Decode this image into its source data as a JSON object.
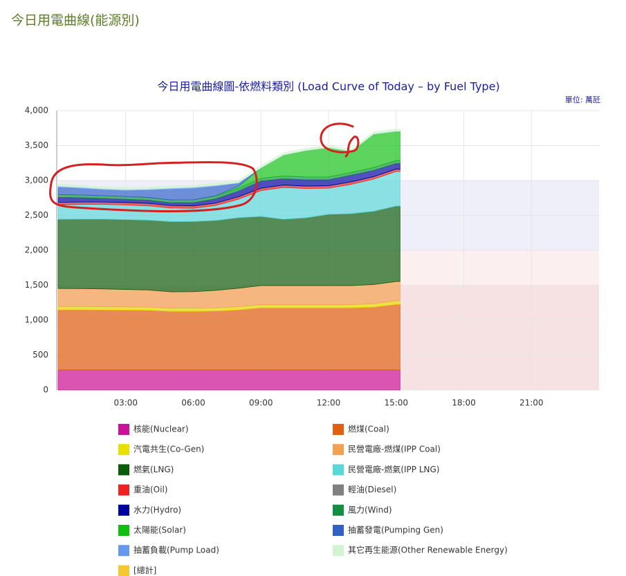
{
  "page_title": "今日用電曲線(能源別)",
  "chart_data": {
    "type": "stacked_area",
    "title": "今日用電曲線圖-依燃料類別 (Load Curve of Today – by Fuel Type)",
    "unit_label": "單位: 萬瓩",
    "x": [
      0,
      1,
      2,
      3,
      4,
      5,
      6,
      7,
      8,
      9,
      10,
      11,
      12,
      13,
      14,
      15,
      15.17
    ],
    "xlim": [
      0,
      24
    ],
    "xticks": [
      {
        "value": 3,
        "label": "03:00"
      },
      {
        "value": 6,
        "label": "06:00"
      },
      {
        "value": 9,
        "label": "09:00"
      },
      {
        "value": 12,
        "label": "12:00"
      },
      {
        "value": 15,
        "label": "15:00"
      },
      {
        "value": 18,
        "label": "18:00"
      },
      {
        "value": 21,
        "label": "21:00"
      }
    ],
    "ylim": [
      0,
      4000
    ],
    "yticks": [
      0,
      500,
      {
        "value": 1000,
        "label": "1,000"
      },
      {
        "value": 1500,
        "label": "1,500"
      },
      {
        "value": 2000,
        "label": "2,000"
      },
      {
        "value": 2500,
        "label": "2,500"
      },
      {
        "value": 3000,
        "label": "3,000"
      },
      {
        "value": 3500,
        "label": "3,500"
      },
      {
        "value": 4000,
        "label": "4,000"
      }
    ],
    "grid": true,
    "plot_bands": [
      {
        "from": 0,
        "to": 1500,
        "color": "#f6e2e2"
      },
      {
        "from": 1500,
        "to": 2000,
        "color": "#fbefef"
      },
      {
        "from": 2000,
        "to": 3000,
        "color": "#efeff9"
      }
    ],
    "series": [
      {
        "name": "核能(Nuclear)",
        "color": "#cc1199",
        "values": [
          287,
          287,
          287,
          287,
          287,
          287,
          287,
          287,
          287,
          287,
          287,
          287,
          287,
          287,
          287,
          287,
          287
        ]
      },
      {
        "name": "燃煤(Coal)",
        "color": "#e06010",
        "values": [
          862,
          862,
          860,
          858,
          855,
          840,
          840,
          845,
          860,
          890,
          890,
          890,
          890,
          890,
          900,
          940,
          940
        ]
      },
      {
        "name": "汽電共生(Co-Gen)",
        "color": "#e8e000",
        "values": [
          45,
          45,
          45,
          45,
          45,
          45,
          45,
          45,
          45,
          45,
          45,
          45,
          45,
          45,
          48,
          50,
          50
        ]
      },
      {
        "name": "民營電廠-燃煤(IPP Coal)",
        "color": "#f4a050",
        "values": [
          261,
          258,
          255,
          250,
          245,
          234,
          235,
          250,
          265,
          273,
          273,
          273,
          273,
          273,
          275,
          277,
          277
        ]
      },
      {
        "name": "燃氣(LNG)",
        "color": "#0a5c0a",
        "values": [
          990,
          995,
          1000,
          1000,
          1000,
          1005,
          1005,
          1000,
          1010,
          990,
          950,
          970,
          1020,
          1030,
          1050,
          1080,
          1080
        ]
      },
      {
        "name": "民營電廠-燃氣(IPP LNG)",
        "color": "#5ad8d8",
        "values": [
          208,
          210,
          210,
          210,
          205,
          195,
          190,
          215,
          265,
          370,
          455,
          420,
          375,
          420,
          460,
          495,
          495
        ]
      },
      {
        "name": "重油(Oil)",
        "color": "#ee2222",
        "values": [
          30,
          30,
          30,
          30,
          30,
          30,
          30,
          30,
          30,
          30,
          30,
          30,
          30,
          30,
          30,
          30,
          30
        ]
      },
      {
        "name": "輕油(Diesel)",
        "color": "#808080",
        "values": [
          5,
          5,
          5,
          5,
          5,
          5,
          5,
          5,
          5,
          5,
          5,
          5,
          5,
          5,
          5,
          5,
          5
        ]
      },
      {
        "name": "水力(Hydro)",
        "color": "#0000a0",
        "values": [
          70,
          60,
          50,
          45,
          45,
          40,
          45,
          60,
          80,
          100,
          90,
          90,
          85,
          95,
          90,
          80,
          80
        ]
      },
      {
        "name": "風力(Wind)",
        "color": "#109040",
        "values": [
          40,
          40,
          40,
          40,
          40,
          40,
          40,
          40,
          40,
          40,
          40,
          40,
          40,
          40,
          40,
          40,
          40
        ]
      },
      {
        "name": "太陽能(Solar)",
        "color": "#10c010",
        "values": [
          0,
          0,
          0,
          0,
          0,
          0,
          0,
          5,
          30,
          150,
          300,
          380,
          420,
          300,
          480,
          420,
          420
        ]
      },
      {
        "name": "抽蓄發電(Pumping Gen)",
        "color": "#3060c8",
        "values": [
          100,
          90,
          80,
          80,
          100,
          150,
          160,
          130,
          40,
          0,
          0,
          0,
          0,
          0,
          0,
          0,
          0
        ]
      },
      {
        "name": "抽蓄負載(Pump Load)",
        "color": "#6699ee",
        "values": [
          20,
          20,
          20,
          20,
          20,
          20,
          20,
          20,
          10,
          0,
          0,
          0,
          0,
          0,
          0,
          0,
          0
        ]
      },
      {
        "name": "其它再生能源(Other Renewable Energy)",
        "color": "#d0f5d0",
        "values": [
          30,
          30,
          30,
          30,
          30,
          30,
          30,
          30,
          30,
          30,
          30,
          30,
          30,
          30,
          30,
          30,
          30
        ]
      }
    ],
    "legend_extra": [
      {
        "name": "[總計]",
        "color": "#f5c830"
      }
    ]
  }
}
